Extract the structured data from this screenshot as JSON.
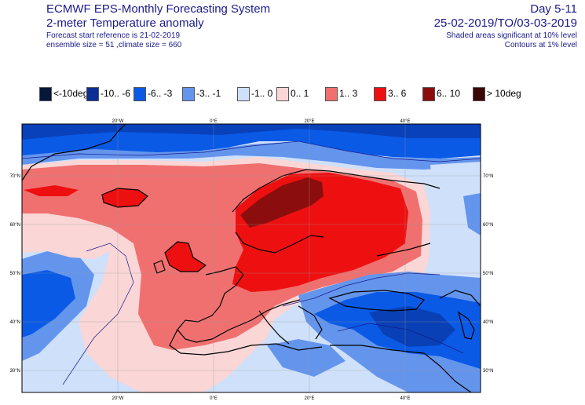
{
  "header": {
    "title": "ECMWF EPS-Monthly Forecasting System",
    "subtitle": "2-meter Temperature anomaly",
    "forecast_ref": "Forecast start reference is 21-02-2019",
    "ensemble": "ensemble size = 51  ,climate size = 660",
    "day_range": "Day 5-11",
    "date_range": "25-02-2019/TO/03-03-2019",
    "shaded_note": "Shaded areas significant at 10% level",
    "contour_note": "Contours at 1% level"
  },
  "legend": [
    {
      "label": "<-10deg",
      "color": "#07173a"
    },
    {
      "label": "-10.. -6",
      "color": "#0a2e96"
    },
    {
      "label": "-6.. -3",
      "color": "#0a5ae6"
    },
    {
      "label": "-3.. -1",
      "color": "#6495ed"
    },
    {
      "label": "-1.. 0",
      "color": "#cfe0fa"
    },
    {
      "label": "0.. 1",
      "color": "#fad6d6"
    },
    {
      "label": "1.. 3",
      "color": "#f07070"
    },
    {
      "label": "3.. 6",
      "color": "#ee1010"
    },
    {
      "label": "6.. 10",
      "color": "#8c0d0d"
    },
    {
      "label": "> 10deg",
      "color": "#3a0606"
    }
  ],
  "map": {
    "lon_ticks": [
      "20°W",
      "0°E",
      "20°E",
      "40°E"
    ],
    "lat_ticks": [
      "70°N",
      "60°N",
      "50°N",
      "40°N",
      "30°N"
    ]
  }
}
